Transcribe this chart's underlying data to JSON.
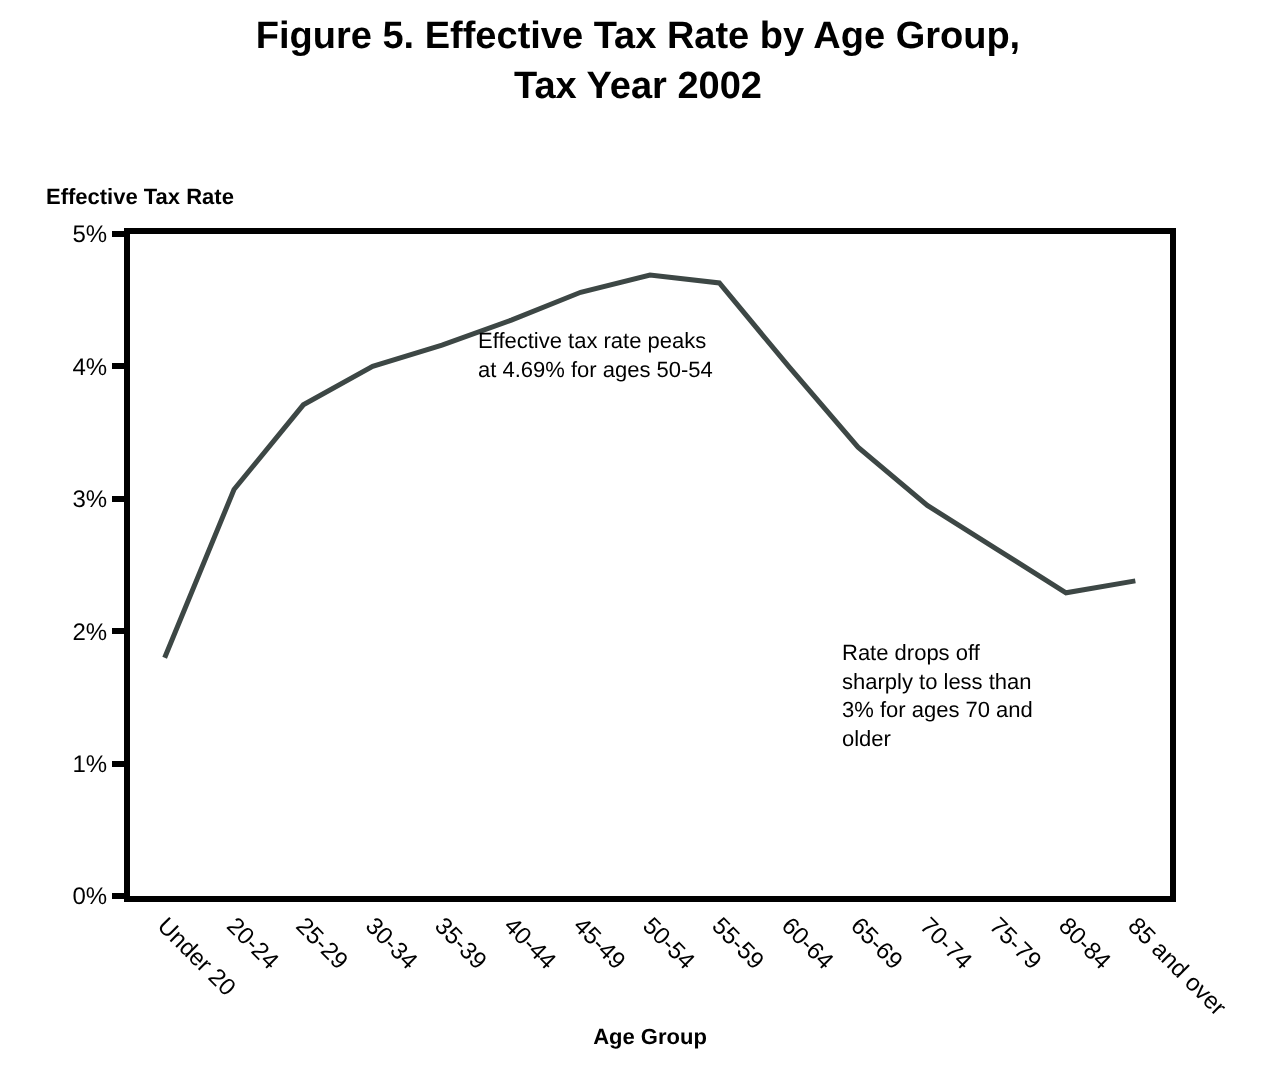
{
  "chart_data": {
    "type": "line",
    "title": "Figure 5. Effective Tax Rate by Age Group, Tax Year 2002",
    "xlabel": "Age Group",
    "ylabel": "Effective Tax Rate",
    "categories": [
      "Under 20",
      "20-24",
      "25-29",
      "30-34",
      "35-39",
      "40-44",
      "45-49",
      "50-54",
      "55-59",
      "60-64",
      "65-69",
      "70-74",
      "75-79",
      "80-84",
      "85 and over"
    ],
    "series": [
      {
        "color": "#3d4745",
        "values": [
          1.8,
          3.07,
          3.71,
          4.0,
          4.16,
          4.35,
          4.56,
          4.69,
          4.63,
          4.0,
          3.39,
          2.95,
          2.62,
          2.29,
          2.38
        ]
      }
    ],
    "ylim": [
      0,
      5
    ],
    "yticks": [
      {
        "value": 0,
        "label": "0%"
      },
      {
        "value": 1,
        "label": "1%"
      },
      {
        "value": 2,
        "label": "2%"
      },
      {
        "value": 3,
        "label": "3%"
      },
      {
        "value": 4,
        "label": "4%"
      },
      {
        "value": 5,
        "label": "5%"
      }
    ],
    "marker": "none",
    "line_style": "solid",
    "annotations": [
      "Effective tax rate peaks at 4.69% for ages 50-54",
      "Rate drops off sharply to less than 3% for ages 70 and older"
    ]
  }
}
